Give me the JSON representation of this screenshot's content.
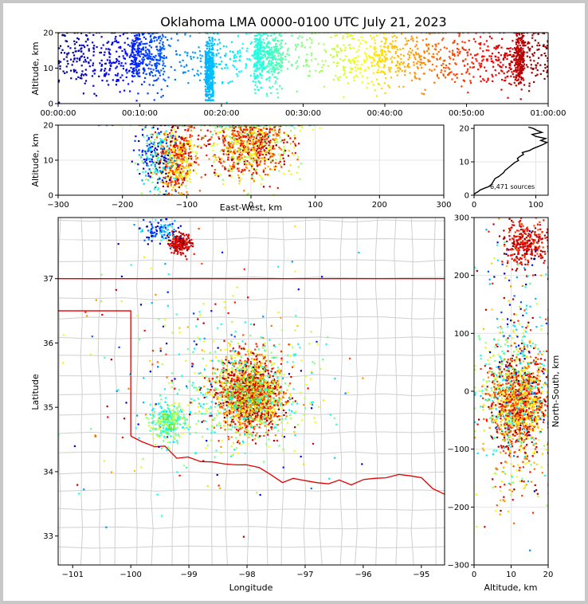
{
  "title": "Oklahoma LMA 0000-0100 UTC July 21, 2023",
  "chart_data": [
    {
      "id": "time-altitude",
      "type": "scatter",
      "ylabel": "Altitude, km",
      "xlim": [
        0,
        60
      ],
      "ylim": [
        0,
        20
      ],
      "x_tick_labels": [
        "00:00:00",
        "00:10:00",
        "00:20:00",
        "00:30:00",
        "00:40:00",
        "00:50:00",
        "01:00:00"
      ],
      "y_tick_labels": [
        "0",
        "10",
        "20"
      ],
      "colormap": "jet (color = time, 00:00 blue to 01:00 dark red)"
    },
    {
      "id": "eastwest-altitude",
      "type": "scatter",
      "xlabel": "East-West, km",
      "ylabel": "Altitude, km",
      "xlim": [
        -300,
        300
      ],
      "ylim": [
        0,
        20
      ],
      "x_tick_labels": [
        "−300",
        "−200",
        "−100",
        "0",
        "100",
        "200",
        "300"
      ],
      "y_tick_labels": [
        "0",
        "10",
        "20"
      ],
      "grid": true
    },
    {
      "id": "altitude-histogram",
      "type": "line",
      "xlim": [
        0,
        120
      ],
      "ylim": [
        0,
        21
      ],
      "x_tick_labels": [
        "0",
        "100"
      ],
      "y_tick_labels": [
        "0",
        "10",
        "20"
      ],
      "annotation": "6,471 sources",
      "profile": [
        [
          0,
          0.2
        ],
        [
          2,
          0.6
        ],
        [
          6,
          1.0
        ],
        [
          10,
          1.6
        ],
        [
          18,
          2.2
        ],
        [
          24,
          2.6
        ],
        [
          28,
          3.2
        ],
        [
          30,
          3.8
        ],
        [
          32,
          4.4
        ],
        [
          34,
          5.0
        ],
        [
          40,
          5.6
        ],
        [
          44,
          6.2
        ],
        [
          48,
          6.8
        ],
        [
          50,
          7.4
        ],
        [
          54,
          8.0
        ],
        [
          58,
          8.6
        ],
        [
          62,
          9.2
        ],
        [
          66,
          9.8
        ],
        [
          72,
          10.4
        ],
        [
          70,
          11.0
        ],
        [
          74,
          11.6
        ],
        [
          80,
          12.2
        ],
        [
          78,
          12.8
        ],
        [
          90,
          13.4
        ],
        [
          96,
          14.0
        ],
        [
          104,
          14.6
        ],
        [
          112,
          15.2
        ],
        [
          118,
          15.8
        ],
        [
          108,
          16.4
        ],
        [
          116,
          17.0
        ],
        [
          100,
          17.6
        ],
        [
          94,
          18.2
        ],
        [
          110,
          18.8
        ],
        [
          102,
          19.4
        ],
        [
          96,
          20.0
        ],
        [
          88,
          20.4
        ]
      ]
    },
    {
      "id": "plan-view",
      "type": "scatter",
      "xlabel": "Longitude",
      "ylabel": "Latitude",
      "xlim": [
        -101.25,
        -94.6
      ],
      "ylim": [
        32.55,
        37.95
      ],
      "x_tick_labels": [
        "−101",
        "−100",
        "−99",
        "−98",
        "−97",
        "−96",
        "−95"
      ],
      "y_tick_labels": [
        "33",
        "34",
        "35",
        "36",
        "37"
      ],
      "clusters": [
        {
          "name": "central",
          "lon": -97.95,
          "lat": 35.2
        },
        {
          "name": "southwest",
          "lon": -99.4,
          "lat": 34.75
        },
        {
          "name": "north",
          "lon": -99.1,
          "lat": 37.55
        }
      ]
    },
    {
      "id": "altitude-northsouth",
      "type": "scatter",
      "xlabel": "Altitude, km",
      "ylabel": "North-South, km",
      "xlim": [
        0,
        20
      ],
      "ylim": [
        -300,
        300
      ],
      "x_tick_labels": [
        "0",
        "10",
        "20"
      ],
      "y_tick_labels": [
        "−300",
        "−200",
        "−100",
        "0",
        "100",
        "200",
        "300"
      ],
      "grid": true
    }
  ]
}
